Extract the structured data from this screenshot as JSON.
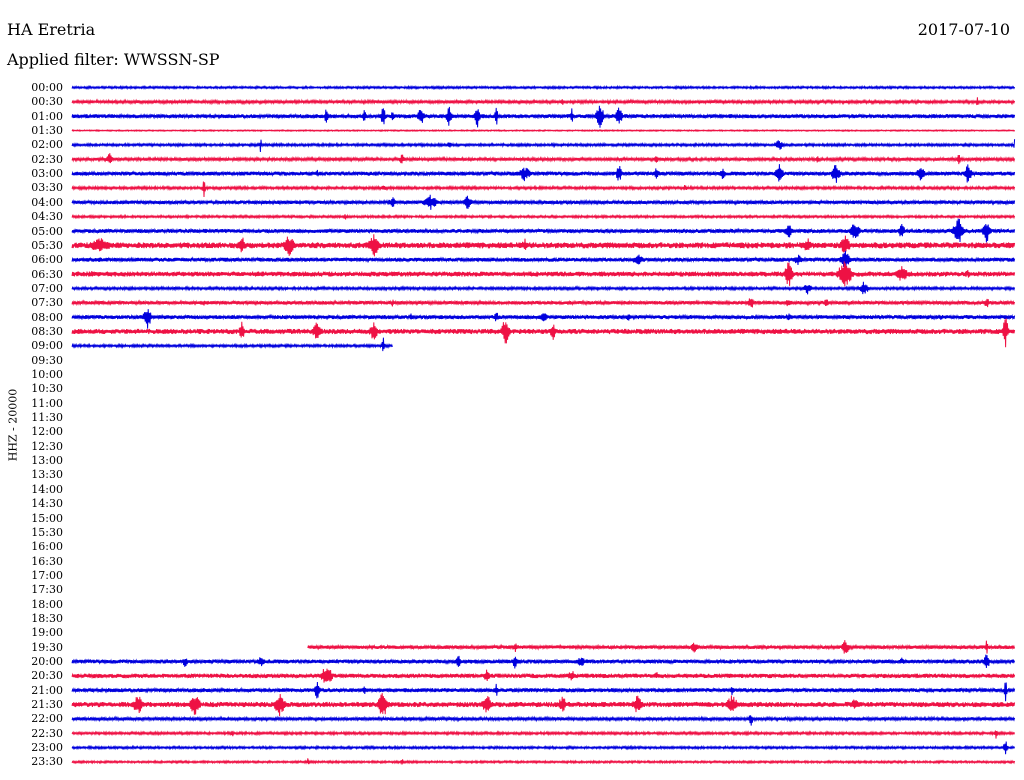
{
  "header": {
    "station": "HA Eretria",
    "date": "2017-07-10",
    "filter": "Applied filter: WWSSN-SP"
  },
  "channel": "HHZ - 20000",
  "colors": {
    "odd": "#0000dd",
    "even": "#ee1144",
    "background": "#ffffff",
    "text": "#000000"
  },
  "chart_data": {
    "type": "line",
    "title": "HA Eretria",
    "ylabel": "HHZ - 20000",
    "row_labels": [
      "00:00",
      "00:30",
      "01:00",
      "01:30",
      "02:00",
      "02:30",
      "03:00",
      "03:30",
      "04:00",
      "04:30",
      "05:00",
      "05:30",
      "06:00",
      "06:30",
      "07:00",
      "07:30",
      "08:00",
      "08:30",
      "09:00",
      "09:30",
      "10:00",
      "10:30",
      "11:00",
      "11:30",
      "12:00",
      "12:30",
      "13:00",
      "13:30",
      "14:00",
      "14:30",
      "15:00",
      "15:30",
      "16:00",
      "16:30",
      "17:00",
      "17:30",
      "18:00",
      "18:30",
      "19:00",
      "19:30",
      "20:00",
      "20:30",
      "21:00",
      "21:30",
      "22:00",
      "22:30",
      "23:00",
      "23:30"
    ],
    "trace_colors": [
      "blue",
      "red"
    ],
    "trace_extent": [
      [
        0,
        1
      ],
      [
        0,
        1
      ],
      [
        0,
        1
      ],
      [
        0,
        1
      ],
      [
        0,
        1
      ],
      [
        0,
        1
      ],
      [
        0,
        1
      ],
      [
        0,
        1
      ],
      [
        0,
        1
      ],
      [
        0,
        1
      ],
      [
        0,
        1
      ],
      [
        0,
        1
      ],
      [
        0,
        1
      ],
      [
        0,
        1
      ],
      [
        0,
        1
      ],
      [
        0,
        1
      ],
      [
        0,
        1
      ],
      [
        0,
        1
      ],
      [
        0,
        0.34
      ],
      null,
      null,
      null,
      null,
      null,
      null,
      null,
      null,
      null,
      null,
      null,
      null,
      null,
      null,
      null,
      null,
      null,
      null,
      null,
      null,
      [
        0.25,
        1
      ],
      [
        0,
        1
      ],
      [
        0,
        1
      ],
      [
        0,
        1
      ],
      [
        0,
        1
      ],
      [
        0,
        1
      ],
      [
        0,
        1
      ],
      [
        0,
        1
      ],
      [
        0,
        1
      ]
    ],
    "noise_level": [
      1,
      1.5,
      2,
      0.6,
      1.2,
      1.5,
      2,
      1.3,
      1.8,
      1.1,
      2,
      3,
      2,
      2.5,
      1.3,
      1.8,
      2,
      2.6,
      1.2,
      0,
      0,
      0,
      0,
      0,
      0,
      0,
      0,
      0,
      0,
      0,
      0,
      0,
      0,
      0,
      0,
      0,
      0,
      0,
      0,
      1.8,
      2,
      2.2,
      2,
      2.6,
      1.6,
      1.2,
      1.1,
      1
    ],
    "bursts": [
      [],
      [
        [
          0.52,
          2,
          4
        ],
        [
          0.96,
          2,
          5
        ]
      ],
      [
        [
          0.27,
          3,
          10
        ],
        [
          0.31,
          3,
          8
        ],
        [
          0.33,
          3,
          12
        ],
        [
          0.34,
          2,
          10
        ],
        [
          0.37,
          5,
          10
        ],
        [
          0.4,
          4,
          12
        ],
        [
          0.43,
          4,
          12
        ],
        [
          0.45,
          2,
          12
        ],
        [
          0.53,
          2,
          8
        ],
        [
          0.56,
          6,
          12
        ],
        [
          0.58,
          5,
          10
        ]
      ],
      [],
      [
        [
          0.2,
          1,
          14
        ],
        [
          0.4,
          3,
          5
        ],
        [
          0.75,
          6,
          6
        ],
        [
          1.0,
          2,
          8
        ]
      ],
      [
        [
          0.04,
          4,
          8
        ],
        [
          0.35,
          4,
          6
        ],
        [
          0.62,
          4,
          4
        ],
        [
          0.79,
          4,
          4
        ],
        [
          0.94,
          4,
          6
        ]
      ],
      [
        [
          0.26,
          3,
          4
        ],
        [
          0.48,
          8,
          8
        ],
        [
          0.58,
          4,
          10
        ],
        [
          0.62,
          4,
          8
        ],
        [
          0.69,
          4,
          8
        ],
        [
          0.75,
          6,
          10
        ],
        [
          0.81,
          6,
          12
        ],
        [
          0.9,
          6,
          8
        ],
        [
          0.95,
          6,
          10
        ]
      ],
      [
        [
          0.14,
          2,
          14
        ],
        [
          0.33,
          4,
          4
        ],
        [
          0.65,
          3,
          4
        ]
      ],
      [
        [
          0.34,
          6,
          6
        ],
        [
          0.38,
          10,
          8
        ],
        [
          0.42,
          6,
          8
        ]
      ],
      [
        [
          0.29,
          4,
          3
        ]
      ],
      [
        [
          0.76,
          6,
          8
        ],
        [
          0.83,
          8,
          10
        ],
        [
          0.88,
          4,
          10
        ],
        [
          0.94,
          8,
          14
        ],
        [
          0.97,
          6,
          12
        ]
      ],
      [
        [
          0.03,
          16,
          8
        ],
        [
          0.18,
          6,
          10
        ],
        [
          0.23,
          8,
          12
        ],
        [
          0.32,
          8,
          12
        ],
        [
          0.48,
          4,
          8
        ],
        [
          0.78,
          6,
          8
        ],
        [
          0.82,
          8,
          10
        ]
      ],
      [
        [
          0.03,
          3,
          4
        ],
        [
          0.6,
          8,
          6
        ],
        [
          0.77,
          6,
          6
        ],
        [
          0.82,
          8,
          10
        ]
      ],
      [
        [
          0.02,
          6,
          4
        ],
        [
          0.76,
          6,
          14
        ],
        [
          0.82,
          10,
          16
        ],
        [
          0.88,
          8,
          10
        ],
        [
          0.95,
          6,
          4
        ]
      ],
      [
        [
          0.78,
          6,
          6
        ],
        [
          0.84,
          6,
          8
        ]
      ],
      [
        [
          0.14,
          3,
          4
        ],
        [
          0.34,
          3,
          4
        ],
        [
          0.72,
          4,
          8
        ],
        [
          0.76,
          4,
          6
        ],
        [
          0.8,
          3,
          6
        ],
        [
          0.97,
          4,
          6
        ]
      ],
      [
        [
          0.08,
          6,
          12
        ],
        [
          0.36,
          4,
          4
        ],
        [
          0.45,
          4,
          6
        ],
        [
          0.5,
          6,
          6
        ],
        [
          0.59,
          4,
          4
        ],
        [
          0.76,
          6,
          4
        ],
        [
          0.92,
          4,
          4
        ]
      ],
      [
        [
          0.18,
          4,
          10
        ],
        [
          0.26,
          6,
          12
        ],
        [
          0.32,
          6,
          10
        ],
        [
          0.46,
          6,
          16
        ],
        [
          0.51,
          4,
          10
        ],
        [
          0.99,
          4,
          16
        ]
      ],
      [
        [
          0.33,
          2,
          10
        ]
      ],
      [],
      [],
      [],
      [],
      [],
      [],
      [],
      [],
      [],
      [],
      [],
      [],
      [],
      [],
      [],
      [],
      [],
      [],
      [],
      [],
      [
        [
          0.47,
          4,
          6
        ],
        [
          0.66,
          6,
          6
        ],
        [
          0.82,
          6,
          8
        ],
        [
          0.97,
          2,
          8
        ]
      ],
      [
        [
          0.12,
          4,
          6
        ],
        [
          0.2,
          6,
          6
        ],
        [
          0.41,
          4,
          8
        ],
        [
          0.47,
          4,
          8
        ],
        [
          0.54,
          6,
          6
        ],
        [
          0.88,
          4,
          4
        ],
        [
          0.97,
          4,
          10
        ]
      ],
      [
        [
          0.27,
          8,
          12
        ],
        [
          0.44,
          4,
          8
        ],
        [
          0.53,
          6,
          6
        ],
        [
          0.62,
          4,
          4
        ]
      ],
      [
        [
          0.26,
          4,
          10
        ],
        [
          0.31,
          2,
          8
        ],
        [
          0.45,
          2,
          8
        ],
        [
          0.7,
          2,
          6
        ],
        [
          0.99,
          2,
          12
        ]
      ],
      [
        [
          0.07,
          8,
          10
        ],
        [
          0.13,
          8,
          12
        ],
        [
          0.22,
          8,
          12
        ],
        [
          0.33,
          8,
          14
        ],
        [
          0.44,
          8,
          10
        ],
        [
          0.52,
          6,
          10
        ],
        [
          0.6,
          8,
          10
        ],
        [
          0.7,
          8,
          10
        ],
        [
          0.83,
          8,
          6
        ]
      ],
      [
        [
          0.72,
          3,
          8
        ]
      ],
      [
        [
          0.17,
          2,
          4
        ],
        [
          0.98,
          2,
          6
        ]
      ],
      [
        [
          0.99,
          3,
          8
        ]
      ],
      [
        [
          0.25,
          2,
          4
        ],
        [
          0.35,
          2,
          4
        ]
      ]
    ]
  }
}
